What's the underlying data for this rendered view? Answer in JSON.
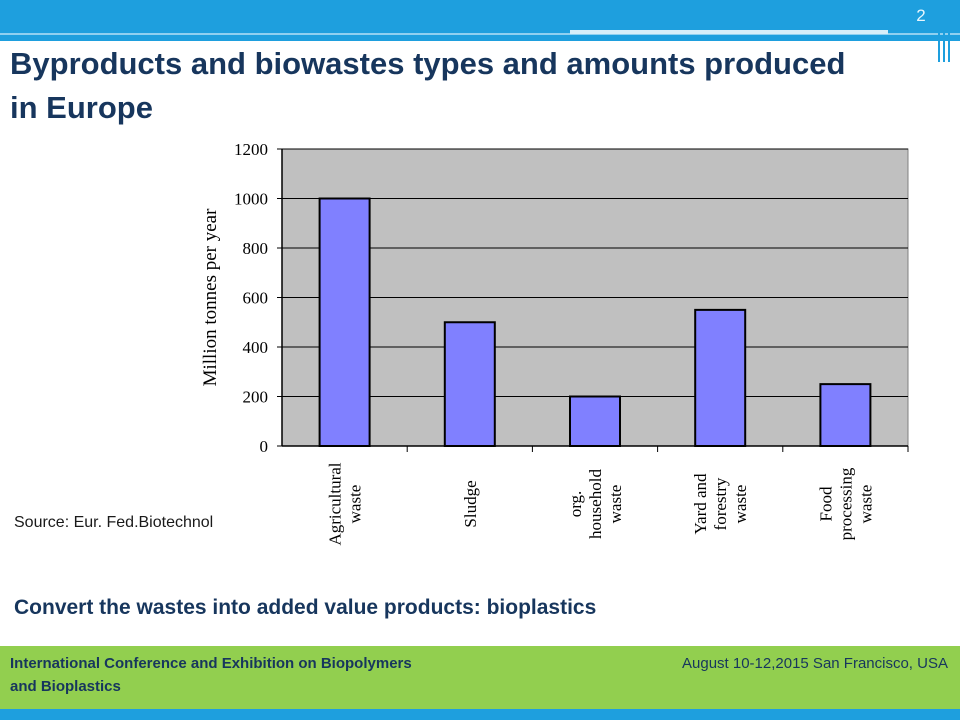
{
  "slide": {
    "page_number": "2",
    "title": "Byproducts and biowastes types and amounts produced in Europe",
    "source": "Source: Eur. Fed.Biotechnol",
    "subtitle": "Convert the wastes into added value products: bioplastics"
  },
  "footer": {
    "left": "International Conference and Exhibition on Biopolymers and Bioplastics",
    "right": "August 10-12,2015 San Francisco, USA"
  },
  "colors": {
    "bar_fill": "#8080ff",
    "plot_background": "#c0c0c0",
    "title": "#17365d",
    "header_band": "#1e9fde",
    "footer_band": "#92cf4f"
  },
  "chart_data": {
    "type": "bar",
    "categories": [
      [
        "Agricultural",
        "waste"
      ],
      [
        "Sludge"
      ],
      [
        "org.",
        "household",
        "waste"
      ],
      [
        "Yard and",
        "forestry",
        "waste"
      ],
      [
        "Food",
        "processing",
        "waste"
      ]
    ],
    "values": [
      1000,
      500,
      200,
      550,
      250
    ],
    "ylabel": "Million tonnes per year",
    "ylim": [
      0,
      1200
    ],
    "yticks": [
      0,
      200,
      400,
      600,
      800,
      1000,
      1200
    ],
    "grid": true,
    "legend": false
  }
}
